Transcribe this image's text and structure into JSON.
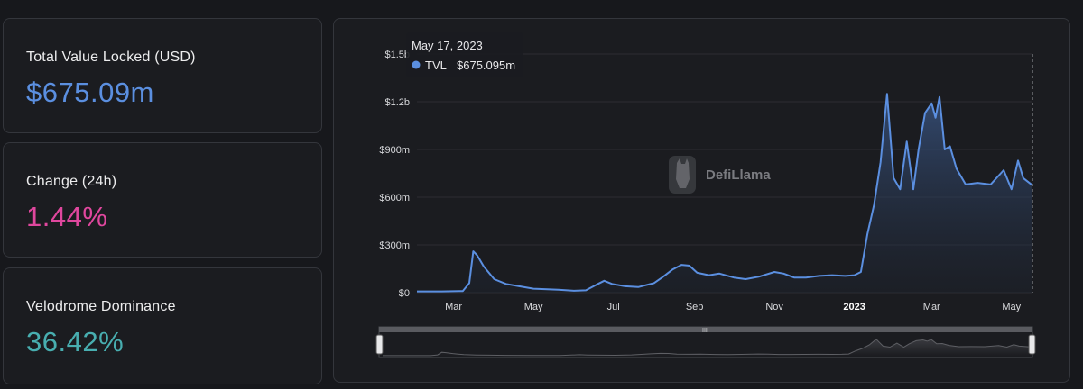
{
  "stats": {
    "tvl": {
      "label": "Total Value Locked (USD)",
      "value": "$675.09m",
      "color": "#5b8fe0"
    },
    "change": {
      "label": "Change (24h)",
      "value": "1.44%",
      "color": "#e0479e"
    },
    "dominance": {
      "label": "Velodrome Dominance",
      "value": "36.42%",
      "color": "#48aeb0"
    }
  },
  "watermark": "DefiLlama",
  "slider_handle_label": "III",
  "tooltip": {
    "date": "May 17, 2023",
    "series": "TVL",
    "value": "$675.095m"
  },
  "chart_data": {
    "type": "area",
    "series": [
      {
        "name": "TVL",
        "color": "#5b8fe0",
        "points": [
          [
            "2022-02-01",
            8
          ],
          [
            "2022-02-20",
            8
          ],
          [
            "2022-03-08",
            10
          ],
          [
            "2022-03-13",
            60
          ],
          [
            "2022-03-16",
            260
          ],
          [
            "2022-03-19",
            235
          ],
          [
            "2022-03-24",
            165
          ],
          [
            "2022-04-01",
            85
          ],
          [
            "2022-04-10",
            55
          ],
          [
            "2022-04-20",
            40
          ],
          [
            "2022-05-01",
            25
          ],
          [
            "2022-05-20",
            18
          ],
          [
            "2022-06-01",
            12
          ],
          [
            "2022-06-10",
            15
          ],
          [
            "2022-06-18",
            50
          ],
          [
            "2022-06-24",
            75
          ],
          [
            "2022-06-30",
            55
          ],
          [
            "2022-07-10",
            40
          ],
          [
            "2022-07-20",
            35
          ],
          [
            "2022-08-01",
            60
          ],
          [
            "2022-08-08",
            100
          ],
          [
            "2022-08-15",
            145
          ],
          [
            "2022-08-22",
            175
          ],
          [
            "2022-08-28",
            170
          ],
          [
            "2022-09-03",
            125
          ],
          [
            "2022-09-12",
            110
          ],
          [
            "2022-09-20",
            120
          ],
          [
            "2022-10-01",
            95
          ],
          [
            "2022-10-10",
            85
          ],
          [
            "2022-10-20",
            100
          ],
          [
            "2022-11-01",
            130
          ],
          [
            "2022-11-08",
            120
          ],
          [
            "2022-11-16",
            95
          ],
          [
            "2022-11-25",
            95
          ],
          [
            "2022-12-05",
            105
          ],
          [
            "2022-12-15",
            110
          ],
          [
            "2022-12-25",
            105
          ],
          [
            "2023-01-01",
            110
          ],
          [
            "2023-01-06",
            130
          ],
          [
            "2023-01-11",
            370
          ],
          [
            "2023-01-16",
            550
          ],
          [
            "2023-01-21",
            820
          ],
          [
            "2023-01-26",
            1250
          ],
          [
            "2023-01-31",
            720
          ],
          [
            "2023-02-05",
            650
          ],
          [
            "2023-02-10",
            950
          ],
          [
            "2023-02-15",
            650
          ],
          [
            "2023-02-19",
            900
          ],
          [
            "2023-02-24",
            1130
          ],
          [
            "2023-03-01",
            1190
          ],
          [
            "2023-03-04",
            1100
          ],
          [
            "2023-03-07",
            1230
          ],
          [
            "2023-03-11",
            900
          ],
          [
            "2023-03-15",
            920
          ],
          [
            "2023-03-20",
            780
          ],
          [
            "2023-03-27",
            680
          ],
          [
            "2023-04-05",
            690
          ],
          [
            "2023-04-15",
            680
          ],
          [
            "2023-04-25",
            770
          ],
          [
            "2023-05-01",
            650
          ],
          [
            "2023-05-06",
            830
          ],
          [
            "2023-05-10",
            720
          ],
          [
            "2023-05-17",
            675
          ]
        ]
      }
    ],
    "x_axis": {
      "type": "date",
      "range": [
        "2022-02-01",
        "2023-05-17"
      ],
      "ticks": [
        {
          "date": "2022-03-01",
          "label": "Mar"
        },
        {
          "date": "2022-05-01",
          "label": "May"
        },
        {
          "date": "2022-07-01",
          "label": "Jul"
        },
        {
          "date": "2022-09-01",
          "label": "Sep"
        },
        {
          "date": "2022-11-01",
          "label": "Nov"
        },
        {
          "date": "2023-01-01",
          "label": "2023",
          "bold": true
        },
        {
          "date": "2023-03-01",
          "label": "Mar"
        },
        {
          "date": "2023-05-01",
          "label": "May"
        }
      ]
    },
    "y_axis": {
      "range": [
        0,
        1500
      ],
      "ticks": [
        {
          "value": 0,
          "label": "$0"
        },
        {
          "value": 300,
          "label": "$300m"
        },
        {
          "value": 600,
          "label": "$600m"
        },
        {
          "value": 900,
          "label": "$900m"
        },
        {
          "value": 1200,
          "label": "$1.2b"
        },
        {
          "value": 1500,
          "label": "$1.5b"
        }
      ]
    },
    "grid": true,
    "legend": "none"
  }
}
